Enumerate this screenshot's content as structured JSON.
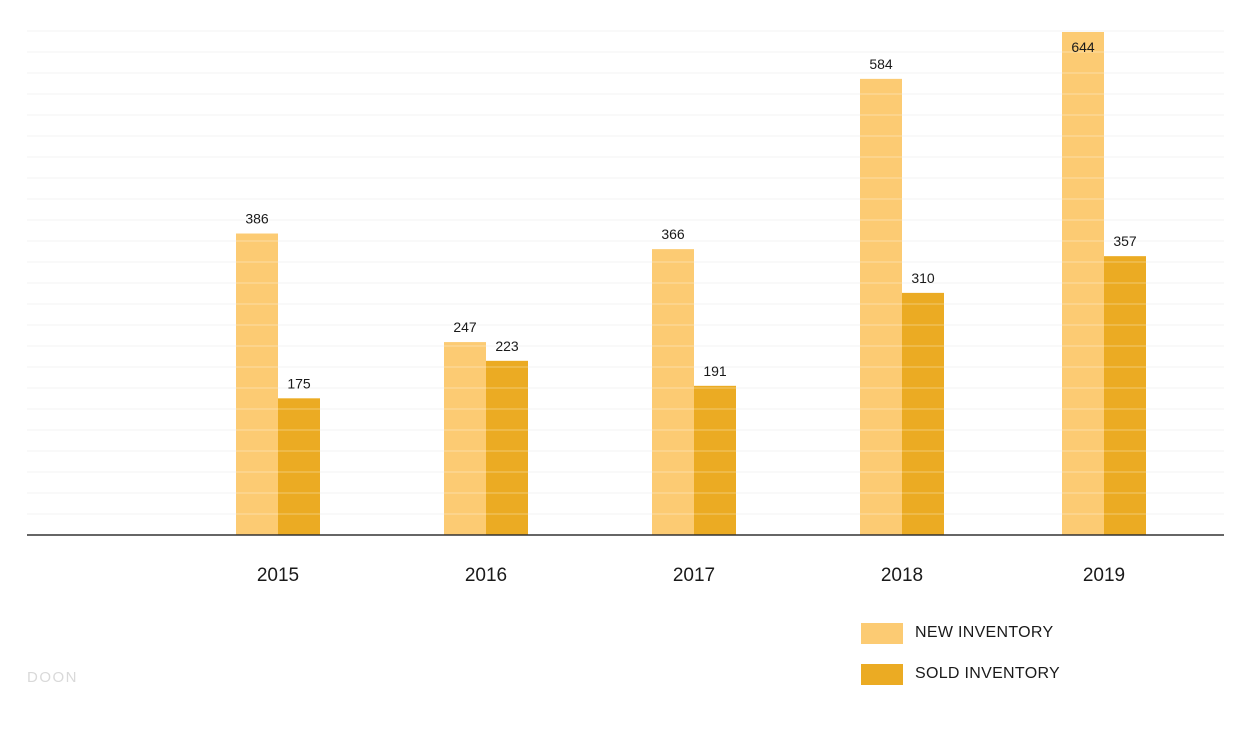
{
  "chart_data": {
    "type": "bar",
    "title": "",
    "xlabel": "",
    "ylabel": "",
    "categories": [
      "2015",
      "2016",
      "2017",
      "2018",
      "2019"
    ],
    "series": [
      {
        "name": "NEW INVENTORY",
        "values": [
          386,
          247,
          366,
          584,
          644
        ],
        "color": "#FCCB73"
      },
      {
        "name": "SOLD INVENTORY",
        "values": [
          175,
          223,
          191,
          310,
          357
        ],
        "color": "#EBAB23"
      }
    ],
    "ylim": [
      0,
      644
    ],
    "grid": true,
    "legend_position": "bottom-right"
  },
  "watermark": "DOON"
}
